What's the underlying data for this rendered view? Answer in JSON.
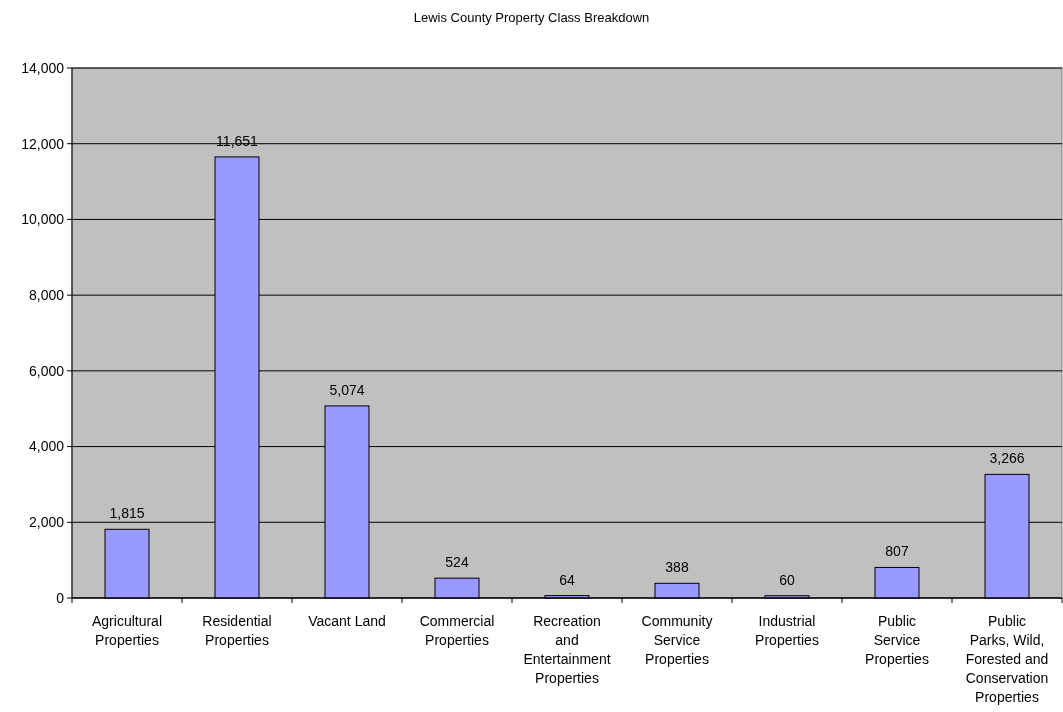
{
  "chart_data": {
    "type": "bar",
    "title": "Lewis County Property Class Breakdown",
    "categories": [
      "Agricultural Properties",
      "Residential Properties",
      "Vacant Land",
      "Commercial Properties",
      "Recreation and Entertainment Properties",
      "Community Service Properties",
      "Industrial Properties",
      "Public Service Properties",
      "Public Parks, Wild, Forested and Conservation Properties"
    ],
    "values": [
      1815,
      11651,
      5074,
      524,
      64,
      388,
      60,
      807,
      3266
    ],
    "color": "#9999ff",
    "ylim": [
      0,
      14000
    ],
    "yticks": [
      {
        "value": 0,
        "label": "0"
      },
      {
        "value": 2000,
        "label": "2,000"
      },
      {
        "value": 4000,
        "label": "4,000"
      },
      {
        "value": 6000,
        "label": "6,000"
      },
      {
        "value": 8000,
        "label": "8,000"
      },
      {
        "value": 10000,
        "label": "10,000"
      },
      {
        "value": 12000,
        "label": "12,000"
      },
      {
        "value": 14000,
        "label": "14,000"
      }
    ],
    "value_labels": [
      "1,815",
      "11,651",
      "5,074",
      "524",
      "64",
      "388",
      "60",
      "807",
      "3,266"
    ],
    "grid": "y"
  }
}
